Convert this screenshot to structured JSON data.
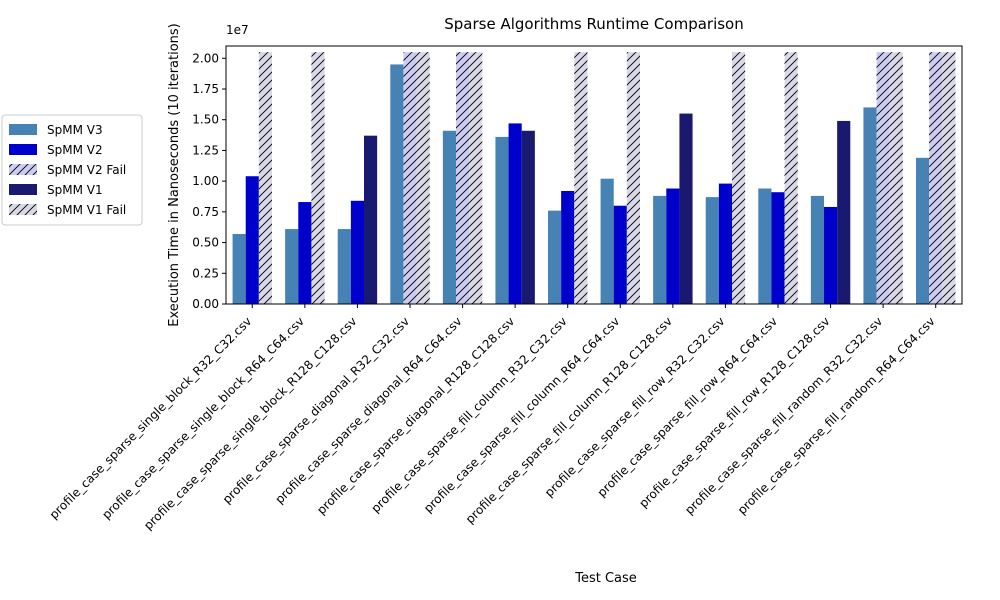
{
  "chart_data": {
    "type": "bar",
    "title": "Sparse Algorithms Runtime Comparison",
    "xlabel": "Test Case",
    "ylabel": "Execution Time in Nanoseconds (10 iterations)",
    "y_offset_label": "1e7",
    "ylim": [
      0,
      21000000
    ],
    "yticks": [
      0,
      2500000,
      5000000,
      7500000,
      10000000,
      12500000,
      15000000,
      17500000,
      20000000
    ],
    "ytick_labels": [
      "0.00",
      "0.25",
      "0.50",
      "0.75",
      "1.00",
      "1.25",
      "1.50",
      "1.75",
      "2.00"
    ],
    "fail_value": 20500000,
    "grid": false,
    "legend_position": "left, outside the axes",
    "categories": [
      "profile_case_sparse_single_block_R32_C32.csv",
      "profile_case_sparse_single_block_R64_C64.csv",
      "profile_case_sparse_single_block_R128_C128.csv",
      "profile_case_sparse_diagonal_R32_C32.csv",
      "profile_case_sparse_diagonal_R64_C64.csv",
      "profile_case_sparse_diagonal_R128_C128.csv",
      "profile_case_sparse_fill_column_R32_C32.csv",
      "profile_case_sparse_fill_column_R64_C64.csv",
      "profile_case_sparse_fill_column_R128_C128.csv",
      "profile_case_sparse_fill_row_R32_C32.csv",
      "profile_case_sparse_fill_row_R64_C64.csv",
      "profile_case_sparse_fill_row_R128_C128.csv",
      "profile_case_sparse_fill_random_R32_C32.csv",
      "profile_case_sparse_fill_random_R64_C64.csv"
    ],
    "legend": [
      {
        "label": "SpMM V3",
        "color": "#4682b4",
        "hatch": false
      },
      {
        "label": "SpMM V2",
        "color": "#0000cd",
        "hatch": false
      },
      {
        "label": "SpMM V2 Fail",
        "color": "#ccccf2",
        "hatch": true
      },
      {
        "label": "SpMM V1",
        "color": "#191970",
        "hatch": false
      },
      {
        "label": "SpMM V1 Fail",
        "color": "#d8d8e6",
        "hatch": true
      }
    ],
    "series": [
      {
        "name": "SpMM V3",
        "color": "#4682b4",
        "values": [
          5700000,
          6100000,
          6100000,
          19500000,
          14100000,
          13600000,
          7600000,
          10200000,
          8800000,
          8700000,
          9400000,
          8800000,
          16000000,
          11900000
        ]
      },
      {
        "name": "SpMM V2",
        "color": "#0000cd",
        "fail_color": "#ccccf2",
        "values": [
          10400000,
          8300000,
          8400000,
          null,
          null,
          14700000,
          9200000,
          8000000,
          9400000,
          9800000,
          9100000,
          7900000,
          null,
          null
        ],
        "failed": [
          false,
          false,
          false,
          true,
          true,
          false,
          false,
          false,
          false,
          false,
          false,
          false,
          true,
          true
        ]
      },
      {
        "name": "SpMM V1",
        "color": "#191970",
        "fail_color": "#d8d8e6",
        "values": [
          null,
          null,
          13700000,
          null,
          null,
          14100000,
          null,
          null,
          15500000,
          null,
          null,
          14900000,
          null,
          null
        ],
        "failed": [
          true,
          true,
          false,
          true,
          true,
          false,
          true,
          true,
          false,
          true,
          true,
          false,
          true,
          true
        ]
      }
    ]
  }
}
